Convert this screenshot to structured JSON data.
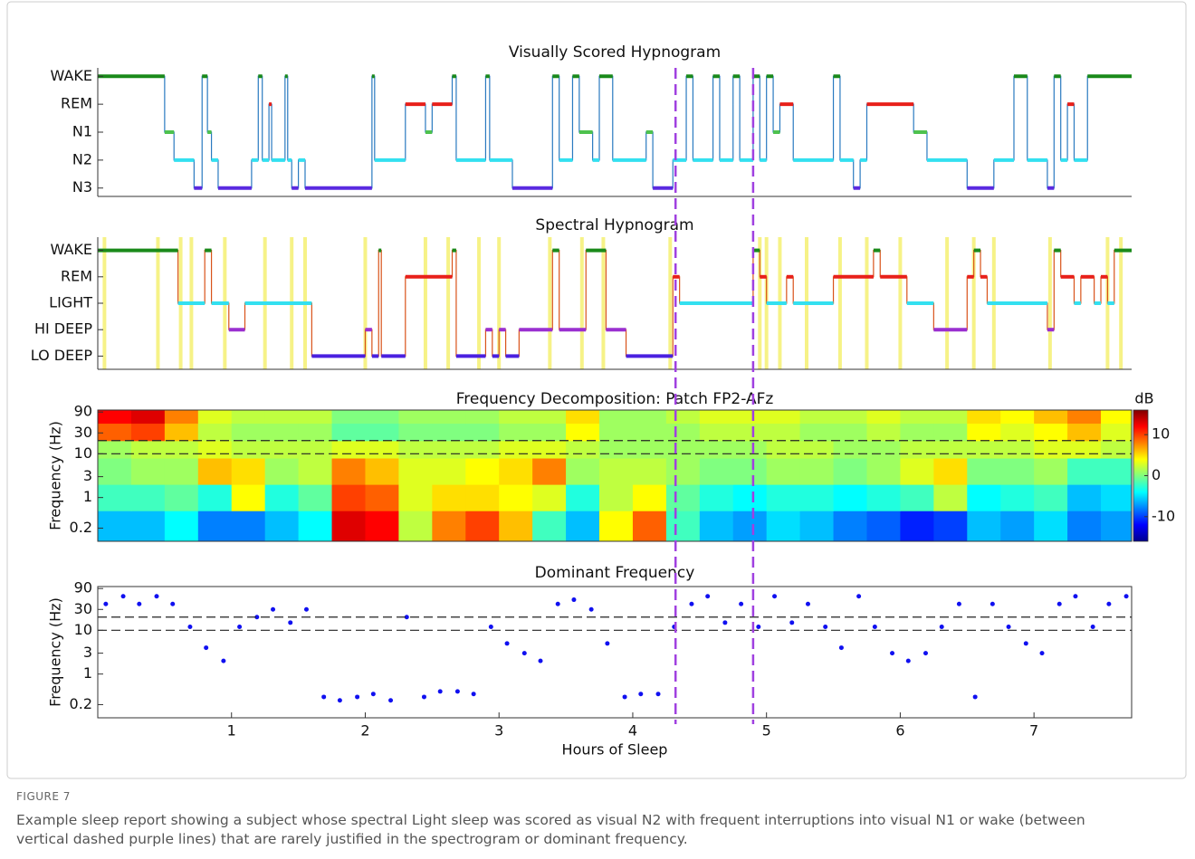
{
  "figure": {
    "label": "FIGURE 7",
    "caption": "Example sleep report showing a subject whose spectral Light sleep was scored as visual N2 with frequent interruptions into visual N1 or wake (between vertical dashed purple lines) that are rarely justified in the spectrogram or dominant frequency.",
    "x_label": "Hours of Sleep",
    "xlim": [
      0,
      7.73
    ],
    "xticks": [
      1,
      2,
      3,
      4,
      5,
      6,
      7
    ],
    "highlight_x": [
      4.32,
      4.9
    ],
    "highlight_color": "#a040e0"
  },
  "chart_data": [
    {
      "type": "step",
      "title": "Visually Scored Hypnogram",
      "ylim": [
        0.7,
        5.3
      ],
      "yticks": [
        {
          "value": 5,
          "label": "WAKE"
        },
        {
          "value": 4,
          "label": "REM"
        },
        {
          "value": 3,
          "label": "N1"
        },
        {
          "value": 2,
          "label": "N2"
        },
        {
          "value": 1,
          "label": "N3"
        }
      ],
      "stage_colors": [
        "#1a8a1a",
        "#e8201a",
        "#4ec24e",
        "#33e0f0",
        "#5a2ae0"
      ],
      "line_color": "#2a7ac0",
      "x": [
        0,
        0.5,
        0.57,
        0.72,
        0.78,
        0.82,
        0.85,
        0.9,
        1.15,
        1.2,
        1.23,
        1.28,
        1.3,
        1.4,
        1.42,
        1.45,
        1.5,
        1.55,
        2.05,
        2.07,
        2.3,
        2.45,
        2.5,
        2.65,
        2.68,
        2.9,
        2.93,
        3.1,
        3.4,
        3.45,
        3.55,
        3.6,
        3.7,
        3.75,
        3.85,
        4.1,
        4.15,
        4.3,
        4.4,
        4.45,
        4.6,
        4.65,
        4.75,
        4.8,
        4.9,
        4.95,
        5.0,
        5.05,
        5.1,
        5.2,
        5.5,
        5.55,
        5.65,
        5.7,
        5.75,
        6.1,
        6.2,
        6.5,
        6.7,
        6.85,
        6.95,
        7.1,
        7.15,
        7.2,
        7.25,
        7.3,
        7.4
      ],
      "values": [
        5,
        3,
        2,
        1,
        5,
        3,
        2,
        1,
        2,
        5,
        2,
        4,
        2,
        5,
        2,
        1,
        2,
        1,
        5,
        2,
        4,
        3,
        4,
        5,
        2,
        5,
        2,
        1,
        5,
        2,
        5,
        3,
        2,
        5,
        2,
        3,
        1,
        2,
        5,
        2,
        5,
        2,
        5,
        2,
        5,
        2,
        5,
        3,
        4,
        2,
        5,
        2,
        1,
        2,
        4,
        3,
        2,
        1,
        2,
        5,
        2,
        1,
        5,
        2,
        4,
        2,
        5
      ]
    },
    {
      "type": "step",
      "title": "Spectral Hypnogram",
      "ylim": [
        0.5,
        5.5
      ],
      "yticks": [
        {
          "value": 5,
          "label": "WAKE"
        },
        {
          "value": 4,
          "label": "REM"
        },
        {
          "value": 3,
          "label": "LIGHT"
        },
        {
          "value": 2,
          "label": "HI DEEP"
        },
        {
          "value": 1,
          "label": "LO DEEP"
        }
      ],
      "stage_colors": [
        "#1a8a1a",
        "#e8201a",
        "#33e0f0",
        "#9a30d0",
        "#4a20e0"
      ],
      "line_color": "#d9531a",
      "artifact_color": "#f5f06a",
      "artifact_x": [
        0.05,
        0.45,
        0.62,
        0.7,
        0.95,
        1.25,
        1.45,
        1.55,
        2.0,
        2.45,
        2.62,
        2.85,
        3.0,
        3.38,
        3.62,
        3.78,
        4.28,
        4.95,
        5.0,
        5.1,
        5.3,
        5.55,
        5.75,
        6.0,
        6.35,
        6.55,
        6.7,
        7.12,
        7.55,
        7.65
      ],
      "x": [
        0,
        0.6,
        0.8,
        0.85,
        0.98,
        1.1,
        1.6,
        2.0,
        2.05,
        2.1,
        2.12,
        2.3,
        2.65,
        2.68,
        2.9,
        2.95,
        3.0,
        3.05,
        3.15,
        3.4,
        3.45,
        3.65,
        3.8,
        3.95,
        4.3,
        4.35,
        4.9,
        4.95,
        5.0,
        5.15,
        5.2,
        5.5,
        5.8,
        5.85,
        6.05,
        6.25,
        6.5,
        6.55,
        6.6,
        6.65,
        7.1,
        7.15,
        7.2,
        7.3,
        7.35,
        7.45,
        7.5,
        7.55,
        7.6
      ],
      "values": [
        5,
        3,
        5,
        3,
        2,
        3,
        1,
        2,
        1,
        5,
        1,
        4,
        5,
        1,
        2,
        1,
        2,
        1,
        2,
        5,
        2,
        5,
        2,
        1,
        4,
        3,
        5,
        4,
        3,
        4,
        3,
        4,
        5,
        4,
        3,
        2,
        4,
        5,
        4,
        3,
        2,
        5,
        4,
        3,
        4,
        3,
        4,
        3,
        5
      ]
    },
    {
      "type": "heatmap",
      "title": "Frequency Decomposition: Patch FP2-AFz",
      "y_label": "Frequency (Hz)",
      "log_y": true,
      "ylim": [
        0.1,
        100
      ],
      "yticks": [
        0.2,
        1,
        3,
        10,
        30,
        90
      ],
      "reference_y": [
        10,
        20
      ],
      "zlim": [
        -16,
        16
      ],
      "zticks": [
        10,
        0,
        -10
      ],
      "colorbar_label": "dB",
      "x": [
        0,
        0.25,
        0.5,
        0.75,
        1.0,
        1.25,
        1.5,
        1.75,
        2.0,
        2.25,
        2.5,
        2.75,
        3.0,
        3.25,
        3.5,
        3.75,
        4.0,
        4.25,
        4.5,
        4.75,
        5.0,
        5.25,
        5.5,
        5.75,
        6.0,
        6.25,
        6.5,
        6.75,
        7.0,
        7.25,
        7.5
      ],
      "y_edges": [
        0.1,
        0.5,
        2,
        8,
        20,
        50,
        100
      ],
      "z": [
        [
          -6,
          -6,
          -4,
          -8,
          -8,
          -6,
          -4,
          13,
          12,
          2,
          8,
          10,
          6,
          -2,
          -6,
          4,
          9,
          -2,
          -6,
          -7,
          -5,
          -6,
          -8,
          -9,
          -11,
          -10,
          -6,
          -7,
          -5,
          -8,
          -7
        ],
        [
          -2,
          -2,
          -1,
          -3,
          4,
          -3,
          -1,
          10,
          9,
          3,
          5,
          5,
          4,
          3,
          -3,
          2,
          4,
          -1,
          -3,
          -4,
          -3,
          -3,
          -4,
          -3,
          -2,
          2,
          -4,
          -3,
          -2,
          -6,
          -5
        ],
        [
          0,
          1,
          1,
          6,
          5,
          1,
          2,
          8,
          6,
          3,
          3,
          4,
          5,
          8,
          1,
          2,
          2,
          1,
          0,
          0,
          1,
          1,
          0,
          1,
          3,
          5,
          0,
          0,
          1,
          -2,
          -2
        ],
        [
          1,
          2,
          2,
          3,
          2,
          2,
          2,
          3,
          3,
          2,
          2,
          2,
          3,
          3,
          2,
          1,
          1,
          1,
          1,
          1,
          2,
          2,
          1,
          1,
          2,
          2,
          2,
          2,
          3,
          3,
          2
        ],
        [
          9,
          10,
          6,
          2,
          1,
          1,
          1,
          -1,
          -1,
          0,
          0,
          0,
          1,
          1,
          4,
          1,
          1,
          1,
          2,
          2,
          2,
          1,
          1,
          2,
          1,
          1,
          4,
          3,
          4,
          6,
          3
        ],
        [
          12,
          13,
          8,
          3,
          2,
          2,
          2,
          0,
          0,
          1,
          1,
          1,
          2,
          2,
          5,
          1,
          1,
          2,
          3,
          3,
          3,
          2,
          2,
          3,
          2,
          2,
          5,
          4,
          6,
          8,
          4
        ]
      ]
    },
    {
      "type": "scatter",
      "title": "Dominant Frequency",
      "y_label": "Frequency (Hz)",
      "log_y": true,
      "ylim": [
        0.1,
        100
      ],
      "yticks": [
        0.2,
        1,
        3,
        10,
        30,
        90
      ],
      "reference_y": [
        10,
        20
      ],
      "color": "#1010f0",
      "x": [
        0.06,
        0.19,
        0.31,
        0.44,
        0.56,
        0.69,
        0.81,
        0.94,
        1.06,
        1.19,
        1.31,
        1.44,
        1.56,
        1.69,
        1.81,
        1.94,
        2.06,
        2.19,
        2.31,
        2.44,
        2.56,
        2.69,
        2.81,
        2.94,
        3.06,
        3.19,
        3.31,
        3.44,
        3.56,
        3.69,
        3.81,
        3.94,
        4.06,
        4.19,
        4.31,
        4.44,
        4.56,
        4.69,
        4.81,
        4.94,
        5.06,
        5.19,
        5.31,
        5.44,
        5.56,
        5.69,
        5.81,
        5.94,
        6.06,
        6.19,
        6.31,
        6.44,
        6.56,
        6.69,
        6.81,
        6.94,
        7.06,
        7.19,
        7.31,
        7.44,
        7.56,
        7.69
      ],
      "values": [
        40,
        60,
        40,
        60,
        40,
        12,
        4,
        2,
        12,
        20,
        30,
        15,
        30,
        0.3,
        0.25,
        0.3,
        0.35,
        0.25,
        20,
        0.3,
        0.4,
        0.4,
        0.35,
        12,
        5,
        3,
        2,
        40,
        50,
        30,
        5,
        0.3,
        0.35,
        0.35,
        12,
        40,
        60,
        15,
        40,
        12,
        60,
        15,
        40,
        12,
        4,
        60,
        12,
        3,
        2,
        3,
        12,
        40,
        0.3,
        40,
        12,
        5,
        3,
        40,
        60,
        12,
        40,
        60
      ]
    }
  ]
}
